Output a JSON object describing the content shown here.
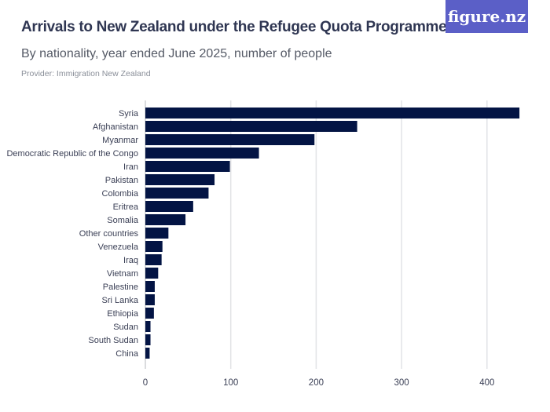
{
  "header": {
    "title": "Arrivals to New Zealand under the Refugee Quota Programme",
    "subtitle": "By nationality, year ended June 2025, number of people",
    "provider": "Provider: Immigration New Zealand",
    "logo": "figure.nz",
    "logo_color": "#5b5fc7"
  },
  "chart_data": {
    "type": "bar",
    "orientation": "horizontal",
    "title": "Arrivals to New Zealand under the Refugee Quota Programme",
    "subtitle": "By nationality, year ended June 2025, number of people",
    "categories": [
      "Syria",
      "Afghanistan",
      "Myanmar",
      "Democratic Republic of the Congo",
      "Iran",
      "Pakistan",
      "Colombia",
      "Eritrea",
      "Somalia",
      "Other countries",
      "Venezuela",
      "Iraq",
      "Vietnam",
      "Palestine",
      "Sri Lanka",
      "Ethiopia",
      "Sudan",
      "South Sudan",
      "China"
    ],
    "values": [
      438,
      248,
      198,
      133,
      99,
      81,
      74,
      56,
      47,
      27,
      20,
      19,
      15,
      11,
      11,
      10,
      6,
      6,
      5
    ],
    "xlim": [
      0,
      440
    ],
    "xticks": [
      "0",
      "100",
      "200",
      "300",
      "400"
    ],
    "grid": true,
    "bar_color": "#031444"
  }
}
